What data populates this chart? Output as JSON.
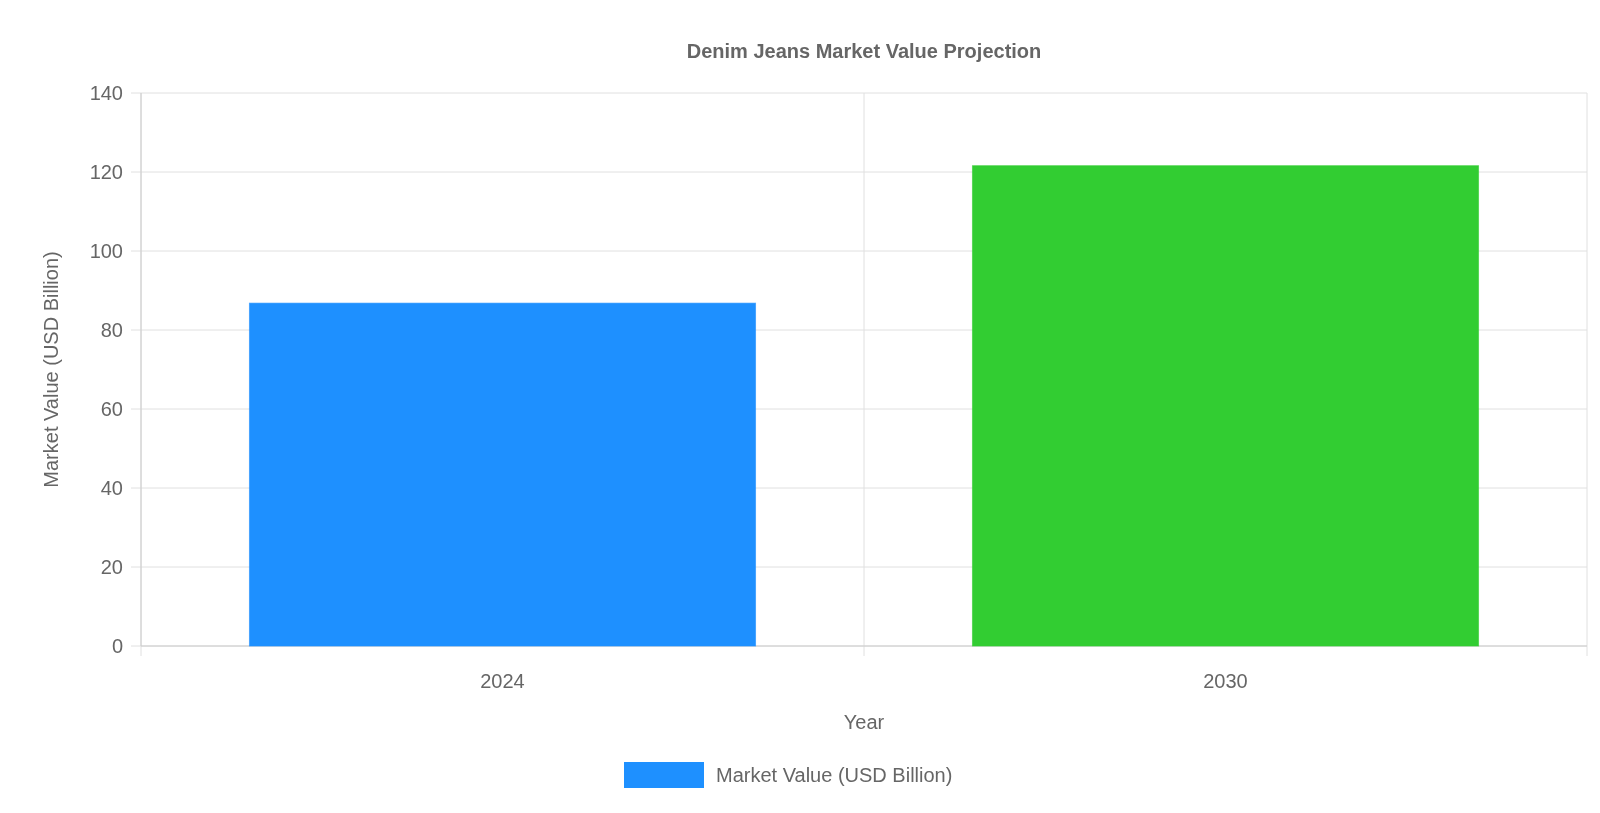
{
  "chart_data": {
    "type": "bar",
    "title": "Denim Jeans Market Value Projection",
    "xlabel": "Year",
    "ylabel": "Market Value (USD Billion)",
    "categories": [
      "2024",
      "2030"
    ],
    "series": [
      {
        "name": "Market Value (USD Billion)",
        "color": "#1e90ff",
        "colors": [
          "#1e90ff",
          "#32cd32"
        ],
        "values": [
          86.8,
          121.6
        ]
      }
    ],
    "ylim": [
      0,
      140
    ],
    "yticks": [
      0,
      20,
      40,
      60,
      80,
      100,
      120,
      140
    ],
    "grid": true,
    "legend": "bottom"
  }
}
